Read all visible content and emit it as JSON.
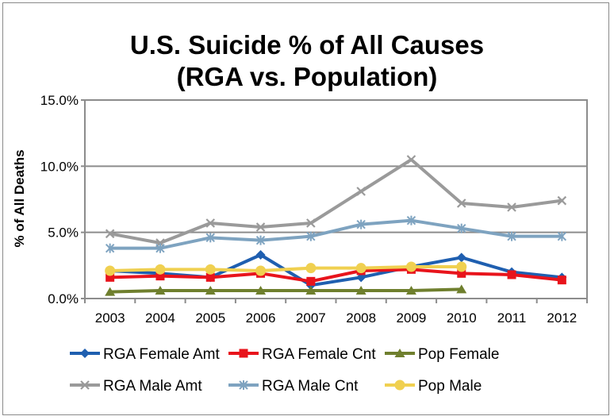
{
  "chart_data": {
    "type": "line",
    "title_line1": "U.S. Suicide % of All Causes",
    "title_line2": "(RGA vs. Population)",
    "ylabel": "% of All Deaths",
    "xlabel": "",
    "categories": [
      "2003",
      "2004",
      "2005",
      "2006",
      "2007",
      "2008",
      "2009",
      "2010",
      "2011",
      "2012"
    ],
    "ylim": [
      0,
      15
    ],
    "yticks": [
      0,
      5,
      10,
      15
    ],
    "ytick_labels": [
      "0.0%",
      "5.0%",
      "10.0%",
      "15.0%"
    ],
    "grid": true,
    "legend_position": "bottom",
    "series": [
      {
        "name": "RGA Female Amt",
        "color": "#1f5fb0",
        "marker": "diamond",
        "values": [
          2.1,
          1.9,
          1.6,
          3.3,
          1.0,
          1.6,
          2.4,
          3.1,
          2.0,
          1.6
        ]
      },
      {
        "name": "RGA Female Cnt",
        "color": "#e8141c",
        "marker": "square",
        "values": [
          1.6,
          1.7,
          1.6,
          1.9,
          1.3,
          2.1,
          2.2,
          1.9,
          1.8,
          1.4
        ]
      },
      {
        "name": "Pop Female",
        "color": "#6f7f2e",
        "marker": "triangle",
        "values": [
          0.5,
          0.6,
          0.6,
          0.6,
          0.6,
          0.6,
          0.6,
          0.7,
          null,
          null
        ]
      },
      {
        "name": "RGA Male Amt",
        "color": "#9a9a9a",
        "marker": "x",
        "values": [
          4.9,
          4.2,
          5.7,
          5.4,
          5.7,
          8.1,
          10.5,
          7.2,
          6.9,
          7.4
        ]
      },
      {
        "name": "RGA Male Cnt",
        "color": "#7ea3c0",
        "marker": "star",
        "values": [
          3.8,
          3.8,
          4.6,
          4.4,
          4.7,
          5.6,
          5.9,
          5.3,
          4.7,
          4.7
        ]
      },
      {
        "name": "Pop Male",
        "color": "#f0d050",
        "marker": "circle",
        "values": [
          2.1,
          2.2,
          2.2,
          2.1,
          2.3,
          2.3,
          2.4,
          2.4,
          null,
          null
        ]
      }
    ]
  }
}
